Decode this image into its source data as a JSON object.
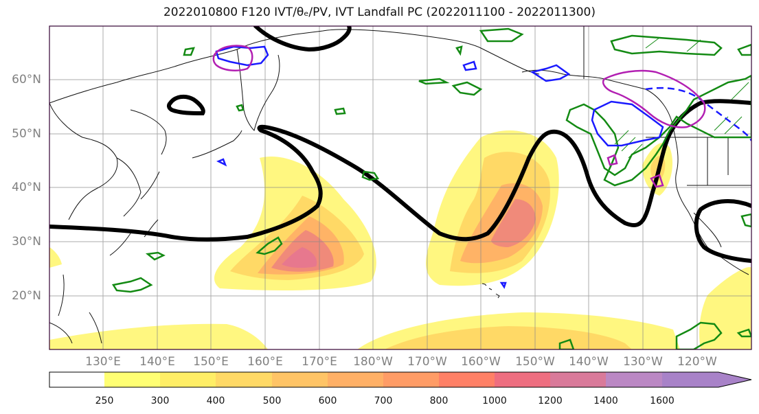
{
  "title": "2022010800 F120 IVT/θₑ/PV, IVT Landfall PC (2022011100 - 2022011300)",
  "lat_labels": [
    "60°N",
    "50°N",
    "40°N",
    "30°N",
    "20°N"
  ],
  "lon_labels": [
    "130°E",
    "140°E",
    "150°E",
    "160°E",
    "170°E",
    "180°W",
    "170°W",
    "160°W",
    "150°W",
    "140°W",
    "130°W",
    "120°W"
  ],
  "colorbar": {
    "levels": [
      "250",
      "300",
      "400",
      "500",
      "600",
      "700",
      "800",
      "1000",
      "1200",
      "1400",
      "1600"
    ],
    "colors": [
      "#ffffff",
      "#ffff73",
      "#ffee66",
      "#ffd966",
      "#ffc466",
      "#ffb066",
      "#ff9c66",
      "#ff8066",
      "#ee6e80",
      "#d97a9a",
      "#bb88c4",
      "#a882c8"
    ]
  },
  "colors": {
    "ivt_fill": [
      "#fff780",
      "#ffd966",
      "#ffb366",
      "#f08a7a",
      "#e7788e"
    ],
    "theta_e_contour": "#000000",
    "pv_green": "#138a13",
    "pv_blue": "#1a1aff",
    "pv_magenta": "#b21fb2"
  }
}
